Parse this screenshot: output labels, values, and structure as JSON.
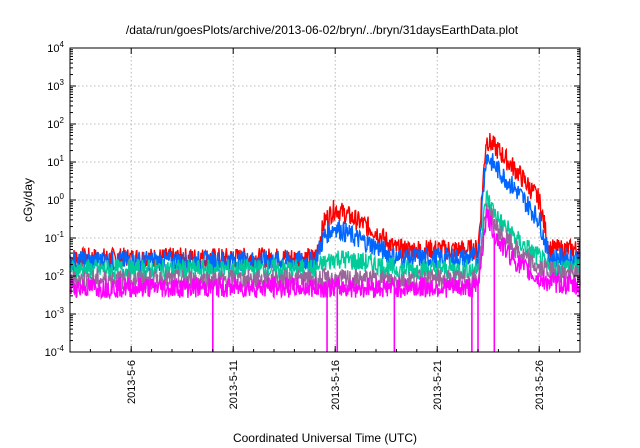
{
  "chart_data": {
    "type": "line",
    "title": "/data/run/goesPlots/archive/2013-06-02/bryn/../bryn/31daysEarthData.plot",
    "xlabel": "Coordinated Universal Time (UTC)",
    "ylabel": "cGy/day",
    "y_scale": "log",
    "ylim": [
      0.0001,
      10000
    ],
    "xlim": [
      "2013-05-03",
      "2013-05-28"
    ],
    "y_ticks": [
      {
        "base": "10",
        "exp": "-4"
      },
      {
        "base": "10",
        "exp": "-3"
      },
      {
        "base": "10",
        "exp": "-2"
      },
      {
        "base": "10",
        "exp": "-1"
      },
      {
        "base": "10",
        "exp": "0"
      },
      {
        "base": "10",
        "exp": "1"
      },
      {
        "base": "10",
        "exp": "2"
      },
      {
        "base": "10",
        "exp": "3"
      },
      {
        "base": "10",
        "exp": "4"
      }
    ],
    "x_ticks": [
      "2013-5-6",
      "2013-5-11",
      "2013-5-16",
      "2013-5-21",
      "2013-5-26"
    ],
    "grid": true,
    "legend": "none",
    "series": [
      {
        "color": "#ff0000",
        "x": [
          "2013-05-03",
          "2013-05-15",
          "2013-05-15.5",
          "2013-05-16",
          "2013-05-17",
          "2013-05-18",
          "2013-05-19",
          "2013-05-21",
          "2013-05-23",
          "2013-05-23.4",
          "2013-05-24",
          "2013-05-25",
          "2013-05-26",
          "2013-05-26.5",
          "2013-05-28"
        ],
        "values": [
          0.03,
          0.03,
          0.3,
          0.6,
          0.3,
          0.15,
          0.05,
          0.05,
          0.05,
          40,
          20,
          5,
          1,
          0.05,
          0.05
        ]
      },
      {
        "color": "#0066ff",
        "x": [
          "2013-05-03",
          "2013-05-15",
          "2013-05-15.5",
          "2013-05-16",
          "2013-05-17",
          "2013-05-18",
          "2013-05-19",
          "2013-05-21",
          "2013-05-23",
          "2013-05-23.4",
          "2013-05-24",
          "2013-05-25",
          "2013-05-26",
          "2013-05-26.5",
          "2013-05-28"
        ],
        "values": [
          0.025,
          0.025,
          0.12,
          0.2,
          0.1,
          0.06,
          0.03,
          0.03,
          0.03,
          15,
          6,
          1.5,
          0.3,
          0.03,
          0.03
        ]
      },
      {
        "color": "#00cc99",
        "x": [
          "2013-05-03",
          "2013-05-15",
          "2013-05-16",
          "2013-05-18",
          "2013-05-19",
          "2013-05-21",
          "2013-05-23",
          "2013-05-23.4",
          "2013-05-24",
          "2013-05-25",
          "2013-05-26",
          "2013-05-26.5",
          "2013-05-28"
        ],
        "values": [
          0.015,
          0.015,
          0.03,
          0.02,
          0.015,
          0.015,
          0.015,
          1.2,
          0.3,
          0.08,
          0.03,
          0.015,
          0.02
        ]
      },
      {
        "color": "#996699",
        "x": [
          "2013-05-03",
          "2013-05-23",
          "2013-05-23.4",
          "2013-05-24",
          "2013-05-25",
          "2013-05-26",
          "2013-05-28"
        ],
        "values": [
          0.008,
          0.008,
          0.6,
          0.15,
          0.04,
          0.015,
          0.01
        ]
      },
      {
        "color": "#ff00ff",
        "x": [
          "2013-05-03",
          "2013-05-10",
          "2013-05-15",
          "2013-05-19",
          "2013-05-23",
          "2013-05-23.4",
          "2013-05-24",
          "2013-05-25",
          "2013-05-26",
          "2013-05-28"
        ],
        "values": [
          0.005,
          0.005,
          0.005,
          0.005,
          0.005,
          0.4,
          0.08,
          0.02,
          0.008,
          0.005
        ]
      }
    ]
  }
}
